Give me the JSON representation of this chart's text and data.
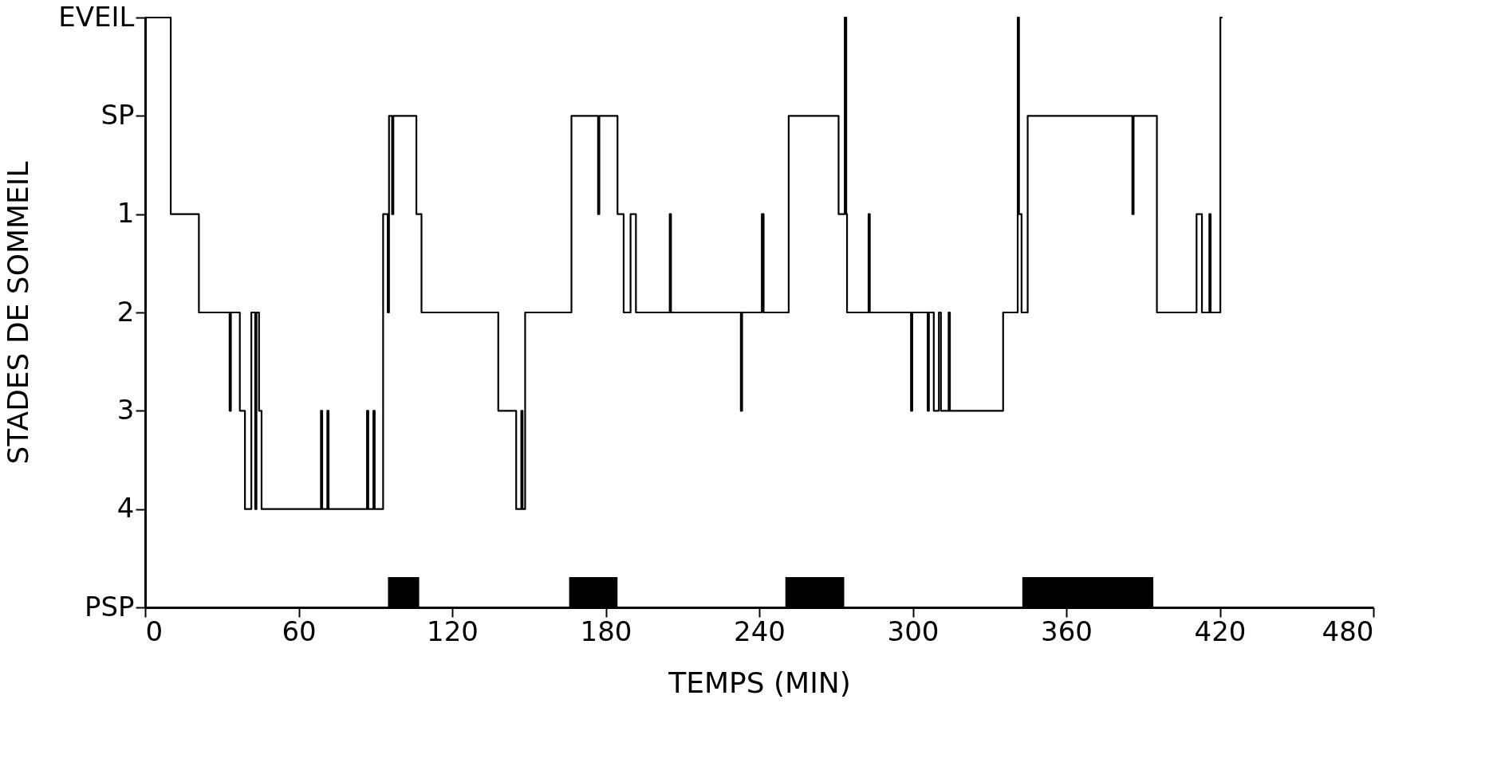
{
  "chart_data": {
    "type": "step",
    "xlabel": "TEMPS (MIN)",
    "ylabel": "STADES DE SOMMEIL",
    "xlim": [
      0,
      480
    ],
    "xticks": [
      0,
      60,
      120,
      180,
      240,
      300,
      360,
      420,
      480
    ],
    "ylim": [
      5,
      -1
    ],
    "yticks": [
      {
        "value": -1,
        "label": "EVEIL"
      },
      {
        "value": 0,
        "label": "SP"
      },
      1,
      2,
      3,
      4,
      {
        "value": 5,
        "label": "PSP"
      }
    ],
    "grid": false,
    "line_style": "solid",
    "marker": "none",
    "series": [
      {
        "color": "#000000",
        "x": [
          0,
          10,
          21,
          33,
          33.5,
          37,
          39,
          41.5,
          43,
          43.5,
          44.5,
          45.5,
          68.7,
          69.2,
          71.2,
          71.7,
          86.7,
          87.2,
          89.2,
          89.7,
          93,
          94.8,
          95.3,
          96.5,
          97,
          106,
          108,
          138,
          145,
          147,
          147.5,
          148.5,
          166.6,
          177,
          177.5,
          184.6,
          187,
          189.7,
          191.8,
          205,
          205.5,
          232.8,
          233.3,
          241,
          241.7,
          251.5,
          271,
          273.4,
          274,
          274.3,
          282.7,
          283.2,
          299.3,
          299.8,
          305.8,
          306.3,
          308.2,
          310.2,
          311,
          314,
          314.5,
          335.3,
          341,
          341.5,
          342.5,
          344.9,
          385.8,
          386.3,
          395.4,
          410.9,
          413,
          415.9,
          416.4,
          420.2,
          421
        ],
        "values": [
          -1,
          1,
          2,
          3,
          2,
          3,
          4,
          2,
          4,
          2,
          3,
          4,
          3,
          4,
          3,
          4,
          3,
          4,
          3,
          4,
          1,
          2,
          0,
          1,
          0,
          1,
          2,
          3,
          4,
          3,
          4,
          2,
          0,
          1,
          0,
          1,
          2,
          1,
          2,
          1,
          2,
          3,
          2,
          1,
          2,
          0,
          1,
          -1,
          1,
          2,
          1,
          2,
          3,
          2,
          3,
          2,
          3,
          2,
          3,
          2,
          3,
          2,
          -1,
          1,
          2,
          0,
          1,
          0,
          2,
          1,
          2,
          1,
          2,
          -1,
          -1
        ]
      }
    ],
    "bands": [
      {
        "axis": "x",
        "from": 94.9,
        "to": 107.1,
        "color": "#000000"
      },
      {
        "axis": "x",
        "from": 165.7,
        "to": 184.6,
        "color": "#000000"
      },
      {
        "axis": "x",
        "from": 250.2,
        "to": 273.2,
        "color": "#000000"
      },
      {
        "axis": "x",
        "from": 342.8,
        "to": 394,
        "color": "#000000"
      }
    ]
  }
}
